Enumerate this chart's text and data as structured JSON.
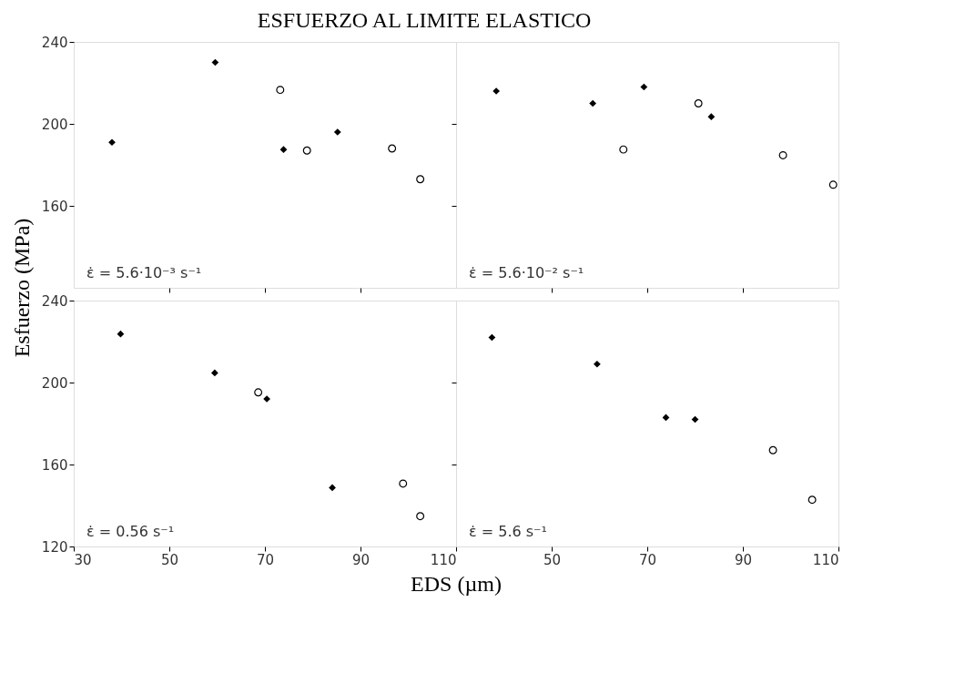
{
  "chart_data": [
    {
      "type": "scatter",
      "title": "ESFUERZO AL LIMITE ELASTICO",
      "ylabel": "Esfuerzo  (MPa)",
      "xlim": [
        30,
        110
      ],
      "xticks": [
        50,
        70,
        90
      ],
      "ylim": [
        120,
        240
      ],
      "yticks": [
        160,
        200,
        240
      ],
      "tick_labels": "y",
      "grid": false,
      "annotations": [
        "ε̇ = 5.6·10⁻³ s⁻¹"
      ],
      "series": [
        {
          "color": "#000000",
          "marker": "diamond",
          "x": [
            38,
            59.6,
            73.9,
            85.2
          ],
          "values": [
            191,
            230,
            187.5,
            196
          ]
        },
        {
          "color": "#000000",
          "marker": "circle",
          "x": [
            73.2,
            78.8,
            96.6,
            102.5
          ],
          "values": [
            216.6,
            187,
            188,
            173
          ]
        }
      ]
    },
    {
      "type": "scatter",
      "xlim": [
        30,
        110
      ],
      "xticks": [
        50,
        70,
        90
      ],
      "ylim": [
        120,
        240
      ],
      "yticks": [
        160,
        200
      ],
      "tick_labels": false,
      "grid": false,
      "annotations": [
        "ε̇ = 5.6·10⁻² s⁻¹"
      ],
      "series": [
        {
          "color": "#000000",
          "marker": "diamond",
          "x": [
            38.4,
            58.6,
            69.3,
            83.4
          ],
          "values": [
            216,
            210,
            218,
            203.5
          ]
        },
        {
          "color": "#000000",
          "marker": "circle",
          "x": [
            65,
            80.7,
            98.4,
            108.9
          ],
          "values": [
            187.5,
            210,
            184.7,
            170.3
          ]
        }
      ]
    },
    {
      "type": "scatter",
      "xlabel": "EDS  (µm)",
      "xlim": [
        30,
        110
      ],
      "xticks": [
        30,
        50,
        70,
        90,
        110
      ],
      "ylim": [
        120,
        240
      ],
      "yticks": [
        120,
        160,
        200,
        240
      ],
      "grid": false,
      "annotations": [
        "ε̇ = 0.56 s⁻¹"
      ],
      "series": [
        {
          "color": "#000000",
          "marker": "diamond",
          "x": [
            39.8,
            59.5,
            70.4,
            84.1
          ],
          "values": [
            223.7,
            204.7,
            192,
            148.7
          ]
        },
        {
          "color": "#000000",
          "marker": "circle",
          "x": [
            68.6,
            98.9,
            102.5
          ],
          "values": [
            195.2,
            150.7,
            134.8
          ]
        }
      ]
    },
    {
      "type": "scatter",
      "xlim": [
        30,
        110
      ],
      "xticks": [
        50,
        70,
        90,
        110
      ],
      "ylim": [
        120,
        240
      ],
      "yticks": [
        160,
        200
      ],
      "tick_labels": "x",
      "grid": false,
      "annotations": [
        "ε̇ = 5.6 s⁻¹"
      ],
      "series": [
        {
          "color": "#000000",
          "marker": "diamond",
          "x": [
            37.5,
            59.5,
            73.9,
            80
          ],
          "values": [
            222,
            209,
            182.9,
            182
          ]
        },
        {
          "color": "#000000",
          "marker": "circle",
          "x": [
            96.3,
            104.5
          ],
          "values": [
            167,
            142.8
          ]
        }
      ]
    }
  ]
}
